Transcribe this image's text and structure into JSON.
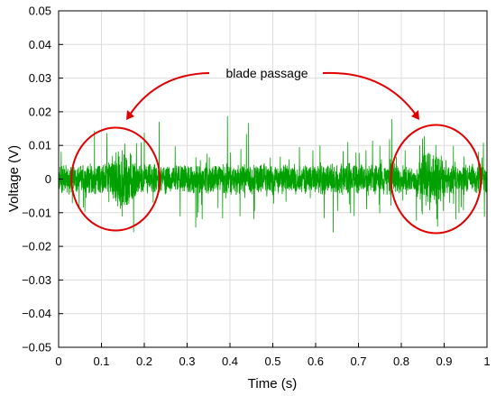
{
  "chart_data": {
    "type": "line",
    "xlabel": "Time (s)",
    "ylabel": "Voltage (V)",
    "xlim": [
      0,
      1
    ],
    "ylim": [
      -0.05,
      0.05
    ],
    "xticks": [
      "0",
      "0.1",
      "0.2",
      "0.3",
      "0.4",
      "0.5",
      "0.6",
      "0.7",
      "0.8",
      "0.9",
      "1"
    ],
    "yticks": [
      "0.05",
      "0.04",
      "0.03",
      "0.02",
      "0.01",
      "0",
      "−0.01",
      "−0.02",
      "−0.03",
      "−0.04",
      "−0.05"
    ],
    "grid": true,
    "series": [
      {
        "color": "#00a000",
        "description": "dense noisy voltage signal, baseline amplitude about ±0.005 V with spikes to ±0.012 V",
        "envelope": {
          "baseline_amplitude": 0.005,
          "spike_max": 0.012,
          "bursts": [
            {
              "t_center": 0.15,
              "half_width": 0.05,
              "amplitude": 0.01
            },
            {
              "t_center": 0.87,
              "half_width": 0.05,
              "amplitude": 0.01
            }
          ]
        }
      }
    ],
    "annotations": [
      {
        "text": "blade passage",
        "color": "#e00000",
        "targets": [
          {
            "t_center": 0.15,
            "v_center": 0.0
          },
          {
            "t_center": 0.86,
            "v_center": 0.0
          }
        ]
      }
    ]
  }
}
